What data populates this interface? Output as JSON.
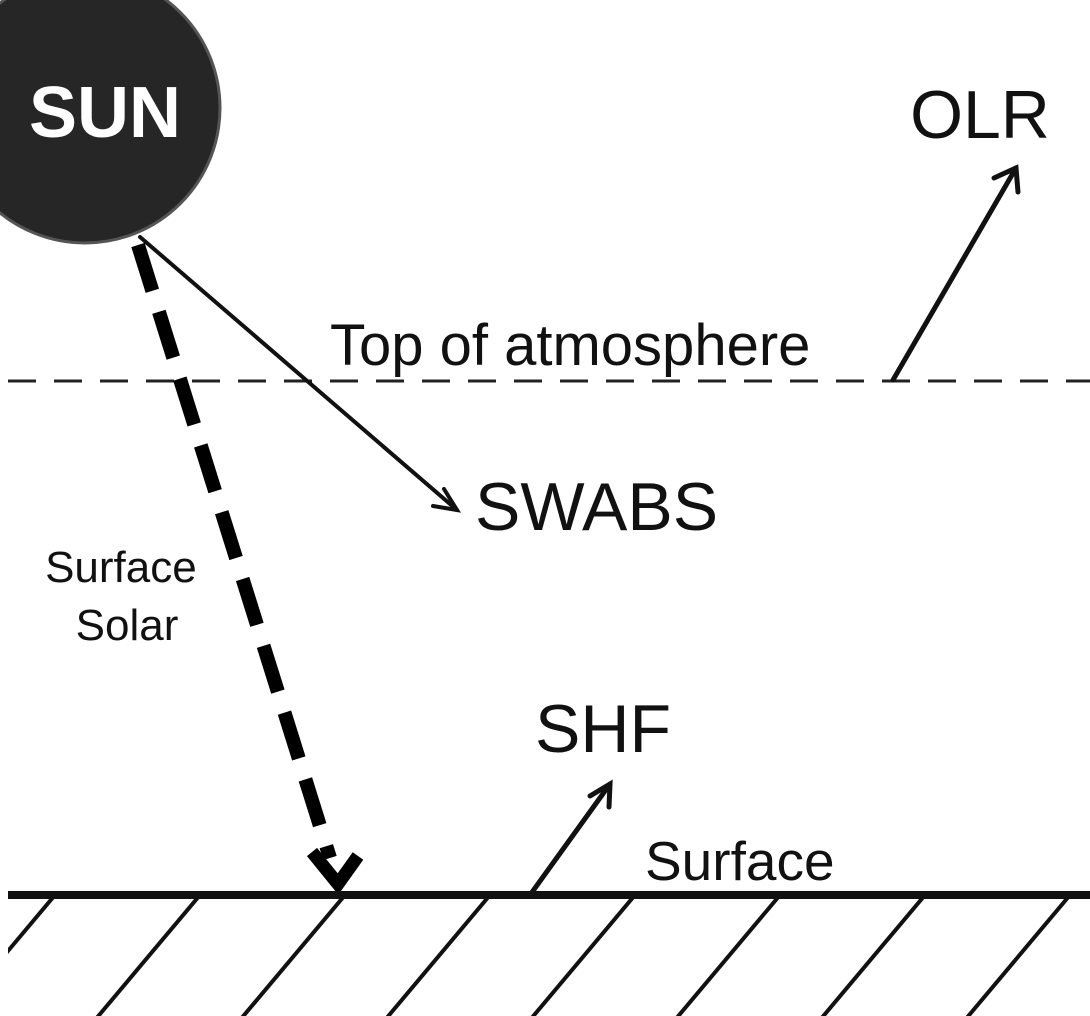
{
  "labels": {
    "sun": "SUN",
    "olr": "OLR",
    "top_of_atmosphere": "Top of atmosphere",
    "swabs": "SWABS",
    "surface_solar": [
      "Surface",
      "Solar"
    ],
    "shf": "SHF",
    "surface": "Surface"
  }
}
